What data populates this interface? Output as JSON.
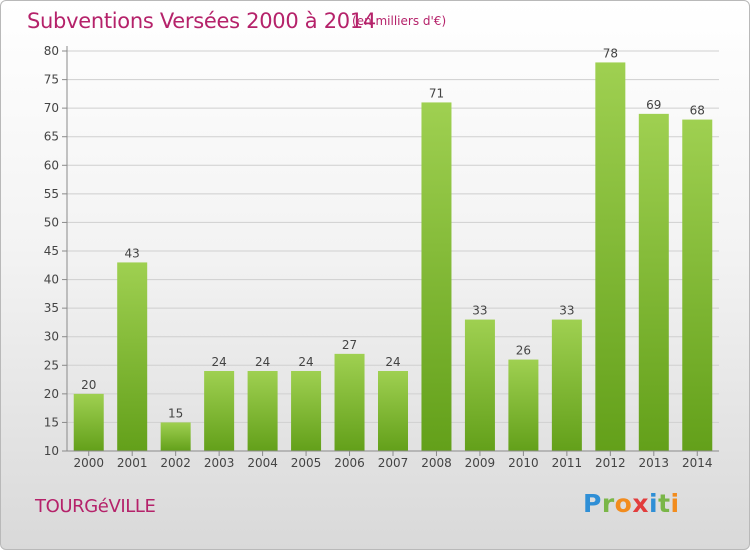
{
  "header": {
    "title": "Subventions Versées 2000 à 2014",
    "subtitle": "(en milliers d'€)"
  },
  "footer": {
    "commune": "TOURGéVILLE",
    "logo": "Proxiti"
  },
  "colors": {
    "title": "#b5226a",
    "bar_light": "#9fd051",
    "bar_dark": "#63a01a",
    "axis": "#8a8a8a",
    "grid": "#cfcfcf"
  },
  "chart_data": {
    "type": "bar",
    "title": "Subventions Versées 2000 à 2014",
    "subtitle": "(en milliers d'€)",
    "xlabel": "",
    "ylabel": "",
    "categories": [
      "2000",
      "2001",
      "2002",
      "2003",
      "2004",
      "2005",
      "2006",
      "2007",
      "2008",
      "2009",
      "2010",
      "2011",
      "2012",
      "2013",
      "2014"
    ],
    "values": [
      20,
      43,
      15,
      24,
      24,
      24,
      27,
      24,
      71,
      33,
      26,
      33,
      78,
      69,
      68
    ],
    "ylim": [
      10,
      80
    ],
    "yticks": [
      10,
      15,
      20,
      25,
      30,
      35,
      40,
      45,
      50,
      55,
      60,
      65,
      70,
      75,
      80
    ],
    "grid": true,
    "data_labels": true
  }
}
